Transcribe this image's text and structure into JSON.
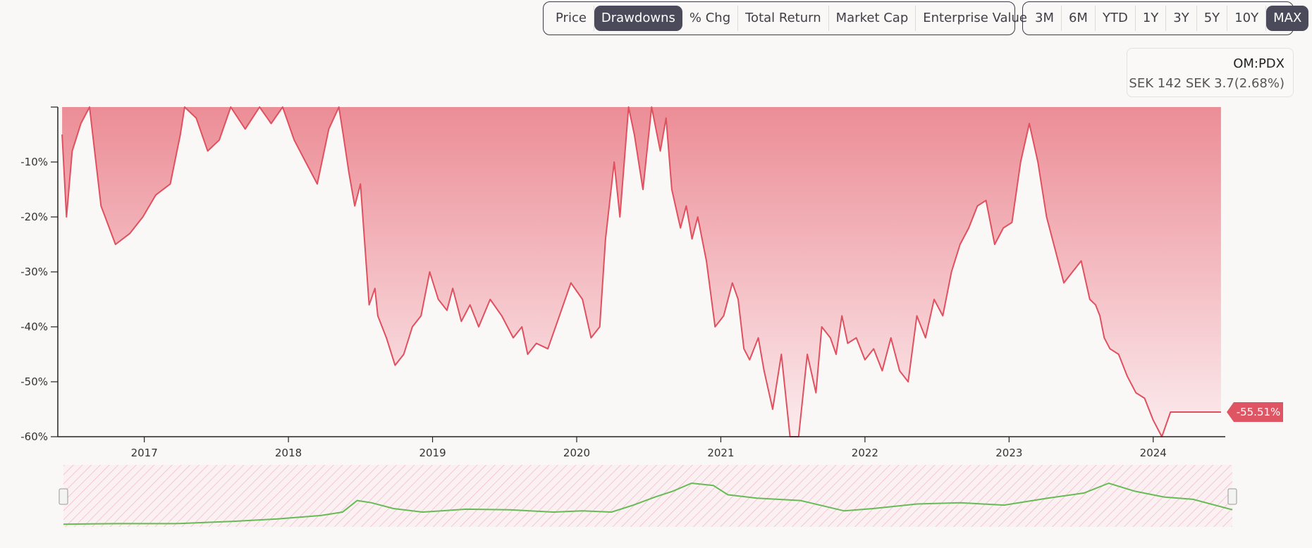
{
  "metric_tabs": [
    {
      "label": "Price",
      "active": false
    },
    {
      "label": "Drawdowns",
      "active": true
    },
    {
      "label": "% Chg",
      "active": false
    },
    {
      "label": "Total Return",
      "active": false
    },
    {
      "label": "Market Cap",
      "active": false
    },
    {
      "label": "Enterprise Value",
      "active": false
    }
  ],
  "range_tabs": [
    {
      "label": "3M",
      "active": false
    },
    {
      "label": "6M",
      "active": false
    },
    {
      "label": "YTD",
      "active": false
    },
    {
      "label": "1Y",
      "active": false
    },
    {
      "label": "3Y",
      "active": false
    },
    {
      "label": "5Y",
      "active": false
    },
    {
      "label": "10Y",
      "active": false
    },
    {
      "label": "MAX",
      "active": true
    }
  ],
  "ticker": {
    "symbol": "OM:PDX",
    "price": "SEK 142",
    "change": "SEK 3.7(2.68%)"
  },
  "colors": {
    "line": "#e0505f",
    "fill_top": "#ec8d96",
    "fill_bottom": "#fbecee",
    "badge": "#e05563",
    "navigator_line": "#66bb55",
    "navigator_hatch": "#f1b6c5",
    "selected_tab": "#4a4a5a"
  },
  "chart_data": {
    "type": "area",
    "x": [
      2016.43,
      2016.46,
      2016.5,
      2016.56,
      2016.62,
      2016.7,
      2016.8,
      2016.9,
      2016.99,
      2017.08,
      2017.18,
      2017.25,
      2017.28,
      2017.36,
      2017.44,
      2017.52,
      2017.6,
      2017.7,
      2017.8,
      2017.88,
      2017.96,
      2018.04,
      2018.12,
      2018.2,
      2018.28,
      2018.35,
      2018.38,
      2018.42,
      2018.46,
      2018.5,
      2018.56,
      2018.6,
      2018.62,
      2018.68,
      2018.74,
      2018.8,
      2018.86,
      2018.92,
      2018.98,
      2019.04,
      2019.1,
      2019.14,
      2019.2,
      2019.26,
      2019.32,
      2019.4,
      2019.48,
      2019.56,
      2019.62,
      2019.66,
      2019.72,
      2019.8,
      2019.88,
      2019.96,
      2020.04,
      2020.1,
      2020.16,
      2020.2,
      2020.26,
      2020.3,
      2020.36,
      2020.4,
      2020.46,
      2020.52,
      2020.58,
      2020.62,
      2020.66,
      2020.72,
      2020.76,
      2020.8,
      2020.84,
      2020.9,
      2020.96,
      2021.02,
      2021.08,
      2021.12,
      2021.16,
      2021.2,
      2021.26,
      2021.3,
      2021.36,
      2021.42,
      2021.48,
      2021.54,
      2021.6,
      2021.66,
      2021.7,
      2021.76,
      2021.8,
      2021.84,
      2021.88,
      2021.94,
      2022.0,
      2022.06,
      2022.12,
      2022.18,
      2022.24,
      2022.3,
      2022.36,
      2022.42,
      2022.48,
      2022.54,
      2022.6,
      2022.66,
      2022.72,
      2022.78,
      2022.84,
      2022.9,
      2022.96,
      2023.02,
      2023.08,
      2023.14,
      2023.2,
      2023.26,
      2023.32,
      2023.38,
      2023.44,
      2023.5,
      2023.56,
      2023.6,
      2023.63,
      2023.66,
      2023.7,
      2023.76,
      2023.82,
      2023.88,
      2023.94,
      2024.0,
      2024.06,
      2024.12,
      2024.18,
      2024.24,
      2024.3,
      2024.36,
      2024.4,
      2024.43,
      2024.47
    ],
    "y": [
      -5,
      -20,
      -8,
      -3,
      0,
      -18,
      -25,
      -23,
      -20,
      -16,
      -14,
      -5,
      0,
      -2,
      -8,
      -6,
      0,
      -4,
      0,
      -3,
      0,
      -6,
      -10,
      -14,
      -4,
      0,
      -5,
      -12,
      -18,
      -14,
      -36,
      -33,
      -38,
      -42,
      -47,
      -45,
      -40,
      -38,
      -30,
      -35,
      -37,
      -33,
      -39,
      -36,
      -40,
      -35,
      -38,
      -42,
      -40,
      -45,
      -43,
      -44,
      -38,
      -32,
      -35,
      -42,
      -40,
      -24,
      -10,
      -20,
      0,
      -5,
      -15,
      0,
      -8,
      -2,
      -15,
      -22,
      -18,
      -24,
      -20,
      -28,
      -40,
      -38,
      -32,
      -35,
      -44,
      -46,
      -42,
      -48,
      -55,
      -45,
      -60,
      -60,
      -45,
      -52,
      -40,
      -42,
      -45,
      -38,
      -43,
      -42,
      -46,
      -44,
      -48,
      -42,
      -48,
      -50,
      -38,
      -42,
      -35,
      -38,
      -30,
      -25,
      -22,
      -18,
      -17,
      -25,
      -22,
      -21,
      -10,
      -3,
      -10,
      -20,
      -26,
      -32,
      -30,
      -28,
      -35,
      -36,
      -38,
      -42,
      -44,
      -45,
      -49,
      -52,
      -53,
      -57,
      -60,
      -55.51,
      -55.51,
      -55.51,
      -55.51,
      -55.51,
      -55.51,
      -55.51,
      -55.51
    ],
    "xlim": [
      2016.4,
      2024.5
    ],
    "ylim": [
      -60,
      0
    ],
    "y_ticks": [
      0,
      -10,
      -20,
      -30,
      -40,
      -50,
      -60
    ],
    "y_tick_labels": [
      "",
      "-10%",
      "-20%",
      "-30%",
      "-40%",
      "-50%",
      "-60%"
    ],
    "x_ticks": [
      2017,
      2018,
      2019,
      2020,
      2021,
      2022,
      2023,
      2024
    ],
    "x_tick_labels": [
      "2017",
      "2018",
      "2019",
      "2020",
      "2021",
      "2022",
      "2023",
      "2024"
    ],
    "last_value_label": "-55.51%",
    "grid": false,
    "navigator": {
      "x": [
        2016.43,
        2016.8,
        2017.2,
        2017.6,
        2017.9,
        2018.2,
        2018.35,
        2018.45,
        2018.55,
        2018.7,
        2018.9,
        2019.2,
        2019.5,
        2019.8,
        2020.0,
        2020.2,
        2020.35,
        2020.5,
        2020.62,
        2020.75,
        2020.9,
        2021.0,
        2021.2,
        2021.5,
        2021.8,
        2022.0,
        2022.3,
        2022.6,
        2022.9,
        2023.2,
        2023.45,
        2023.62,
        2023.8,
        2024.0,
        2024.2,
        2024.47
      ],
      "y": [
        1,
        2,
        2,
        6,
        10,
        16,
        22,
        42,
        38,
        28,
        22,
        27,
        26,
        22,
        24,
        22,
        34,
        48,
        58,
        72,
        68,
        52,
        46,
        42,
        24,
        28,
        36,
        38,
        34,
        46,
        55,
        72,
        58,
        48,
        44,
        26
      ]
    }
  }
}
